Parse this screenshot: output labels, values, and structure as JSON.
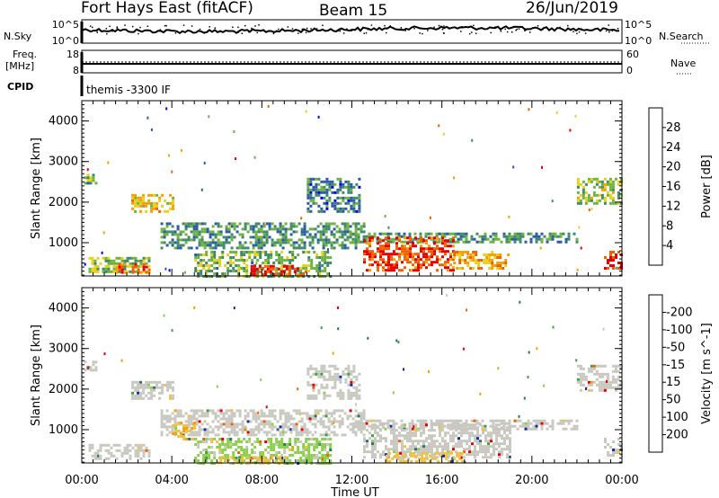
{
  "header": {
    "title": "Fort Hays East (fitACF)",
    "beam": "Beam 15",
    "date": "26/Jun/2019"
  },
  "strip_labels": {
    "nsky": "N.Sky",
    "nsearch": "N.Search",
    "freq_line1": "Freq.",
    "freq_line2": "[MHz]",
    "nave": "Nave",
    "cpid": "CPID",
    "cpid_value": "themis -3300 IF"
  },
  "noise_axis": {
    "left": [
      "10^5",
      "10^0"
    ],
    "right": [
      "10^5",
      "10^0"
    ]
  },
  "freq_axis": {
    "left": [
      "18",
      "8"
    ],
    "right": [
      "60",
      "0"
    ]
  },
  "x_axis": {
    "ticks": [
      "00:00",
      "04:00",
      "08:00",
      "12:00",
      "16:00",
      "20:00",
      "00:00"
    ],
    "label": "Time UT"
  },
  "chart_data": [
    {
      "type": "heatmap",
      "name": "power",
      "ylabel": "Slant Range [km]",
      "xlabel": "Time UT",
      "xlim": [
        0,
        24
      ],
      "ylim": [
        180,
        4500
      ],
      "yticks": [
        "1000",
        "2000",
        "3000",
        "4000"
      ],
      "colorbar": {
        "label": "Power [dB]",
        "ticks": [
          "4",
          "8",
          "12",
          "16",
          "20",
          "24",
          "28"
        ],
        "range": [
          0,
          30
        ],
        "colors": [
          "#0000ee",
          "#2a5aa8",
          "#3e8a6a",
          "#6db33f",
          "#e8d020",
          "#f5a000",
          "#f06000",
          "#e80000"
        ]
      },
      "regions": [
        {
          "t0": 0.1,
          "t1": 0.6,
          "r0": 2500,
          "r1": 2700,
          "value": 12
        },
        {
          "t0": 2.2,
          "t1": 4.0,
          "r0": 1800,
          "r1": 2200,
          "value": 18
        },
        {
          "t0": 0.3,
          "t1": 3.0,
          "r0": 300,
          "r1": 650,
          "value": 14
        },
        {
          "t0": 1.5,
          "t1": 3.0,
          "r0": 250,
          "r1": 500,
          "value": 24
        },
        {
          "t0": 3.5,
          "t1": 12.5,
          "r0": 900,
          "r1": 1500,
          "value": 10
        },
        {
          "t0": 5.0,
          "t1": 11.0,
          "r0": 200,
          "r1": 800,
          "value": 12
        },
        {
          "t0": 7.5,
          "t1": 10.0,
          "r0": 250,
          "r1": 450,
          "value": 27
        },
        {
          "t0": 10.0,
          "t1": 12.3,
          "r0": 1800,
          "r1": 2600,
          "value": 8
        },
        {
          "t0": 12.0,
          "t1": 22.0,
          "r0": 1000,
          "r1": 1250,
          "value": 10
        },
        {
          "t0": 12.5,
          "t1": 16.5,
          "r0": 350,
          "r1": 1150,
          "value": 26
        },
        {
          "t0": 16.5,
          "t1": 19.0,
          "r0": 400,
          "r1": 800,
          "value": 20
        },
        {
          "t0": 22.0,
          "t1": 24.0,
          "r0": 2000,
          "r1": 2600,
          "value": 14
        },
        {
          "t0": 23.2,
          "t1": 24.0,
          "r0": 400,
          "r1": 800,
          "value": 27
        }
      ]
    },
    {
      "type": "heatmap",
      "name": "velocity",
      "ylabel": "Slant Range [km]",
      "xlabel": "Time UT",
      "xlim": [
        0,
        24
      ],
      "ylim": [
        180,
        4500
      ],
      "yticks": [
        "1000",
        "2000",
        "3000",
        "4000"
      ],
      "colorbar": {
        "label": "Velocity [m s^-1]",
        "ticks": [
          "200",
          "100",
          "50",
          "15",
          "-15",
          "-50",
          "-100",
          "-200"
        ],
        "range": [
          -250,
          250
        ],
        "colors": [
          "#1028b0",
          "#2f6f6f",
          "#3aa040",
          "#8ad04a",
          "#c8c8c0",
          "#f0c040",
          "#f5a000",
          "#f06000",
          "#e80000"
        ]
      },
      "regions": [
        {
          "t0": 0.1,
          "t1": 0.6,
          "r0": 2500,
          "r1": 2700,
          "value": 0
        },
        {
          "t0": 2.2,
          "t1": 4.0,
          "r0": 1800,
          "r1": 2200,
          "value": 0
        },
        {
          "t0": 0.3,
          "t1": 3.0,
          "r0": 300,
          "r1": 650,
          "value": 0
        },
        {
          "t0": 3.5,
          "t1": 12.5,
          "r0": 900,
          "r1": 1500,
          "value": 0
        },
        {
          "t0": 4.0,
          "t1": 5.0,
          "r0": 800,
          "r1": 1200,
          "value": -80
        },
        {
          "t0": 5.0,
          "t1": 11.0,
          "r0": 200,
          "r1": 800,
          "value": 40
        },
        {
          "t0": 6.0,
          "t1": 9.0,
          "r0": 200,
          "r1": 350,
          "value": -60
        },
        {
          "t0": 10.0,
          "t1": 12.3,
          "r0": 1800,
          "r1": 2600,
          "value": 0
        },
        {
          "t0": 12.0,
          "t1": 22.0,
          "r0": 1000,
          "r1": 1250,
          "value": 0
        },
        {
          "t0": 12.5,
          "t1": 19.0,
          "r0": 350,
          "r1": 1150,
          "value": 0
        },
        {
          "t0": 13.5,
          "t1": 17.0,
          "r0": 250,
          "r1": 450,
          "value": -40
        },
        {
          "t0": 22.0,
          "t1": 24.0,
          "r0": 2000,
          "r1": 2600,
          "value": 0
        },
        {
          "t0": 23.2,
          "t1": 24.0,
          "r0": 400,
          "r1": 800,
          "value": 0
        }
      ]
    }
  ]
}
